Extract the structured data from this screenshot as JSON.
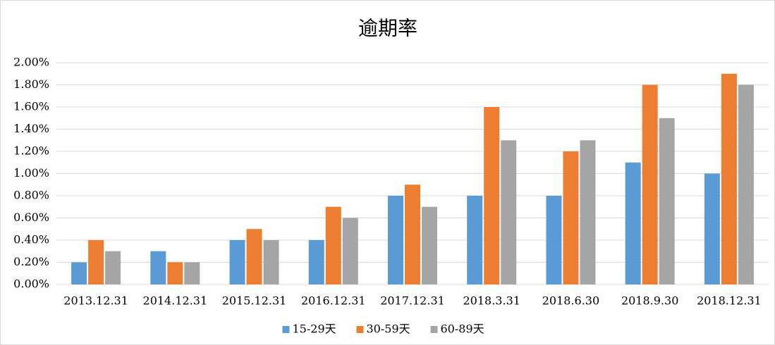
{
  "chart_data": {
    "type": "bar",
    "title": "逾期率",
    "categories": [
      "2013.12.31",
      "2014.12.31",
      "2015.12.31",
      "2016.12.31",
      "2017.12.31",
      "2018.3.31",
      "2018.6.30",
      "2018.9.30",
      "2018.12.31"
    ],
    "series": [
      {
        "name": "15-29天",
        "color": "#5b9bd5",
        "values": [
          0.2,
          0.3,
          0.4,
          0.4,
          0.8,
          0.8,
          0.8,
          1.1,
          1.0
        ]
      },
      {
        "name": "30-59天",
        "color": "#ed7d31",
        "values": [
          0.4,
          0.2,
          0.5,
          0.7,
          0.9,
          1.6,
          1.2,
          1.8,
          1.9
        ]
      },
      {
        "name": "60-89天",
        "color": "#a5a5a5",
        "values": [
          0.3,
          0.2,
          0.4,
          0.6,
          0.7,
          1.3,
          1.3,
          1.5,
          1.8
        ]
      }
    ],
    "ylim": [
      0,
      2
    ],
    "yticks": [
      {
        "value": 0,
        "label": "0.00%"
      },
      {
        "value": 0.2,
        "label": "0.20%"
      },
      {
        "value": 0.4,
        "label": "0.40%"
      },
      {
        "value": 0.6,
        "label": "0.60%"
      },
      {
        "value": 0.8,
        "label": "0.80%"
      },
      {
        "value": 1.0,
        "label": "1.00%"
      },
      {
        "value": 1.2,
        "label": "1.20%"
      },
      {
        "value": 1.4,
        "label": "1.40%"
      },
      {
        "value": 1.6,
        "label": "1.60%"
      },
      {
        "value": 1.8,
        "label": "1.80%"
      },
      {
        "value": 2.0,
        "label": "2.00%"
      }
    ],
    "grid": true,
    "legend": "bottom"
  }
}
